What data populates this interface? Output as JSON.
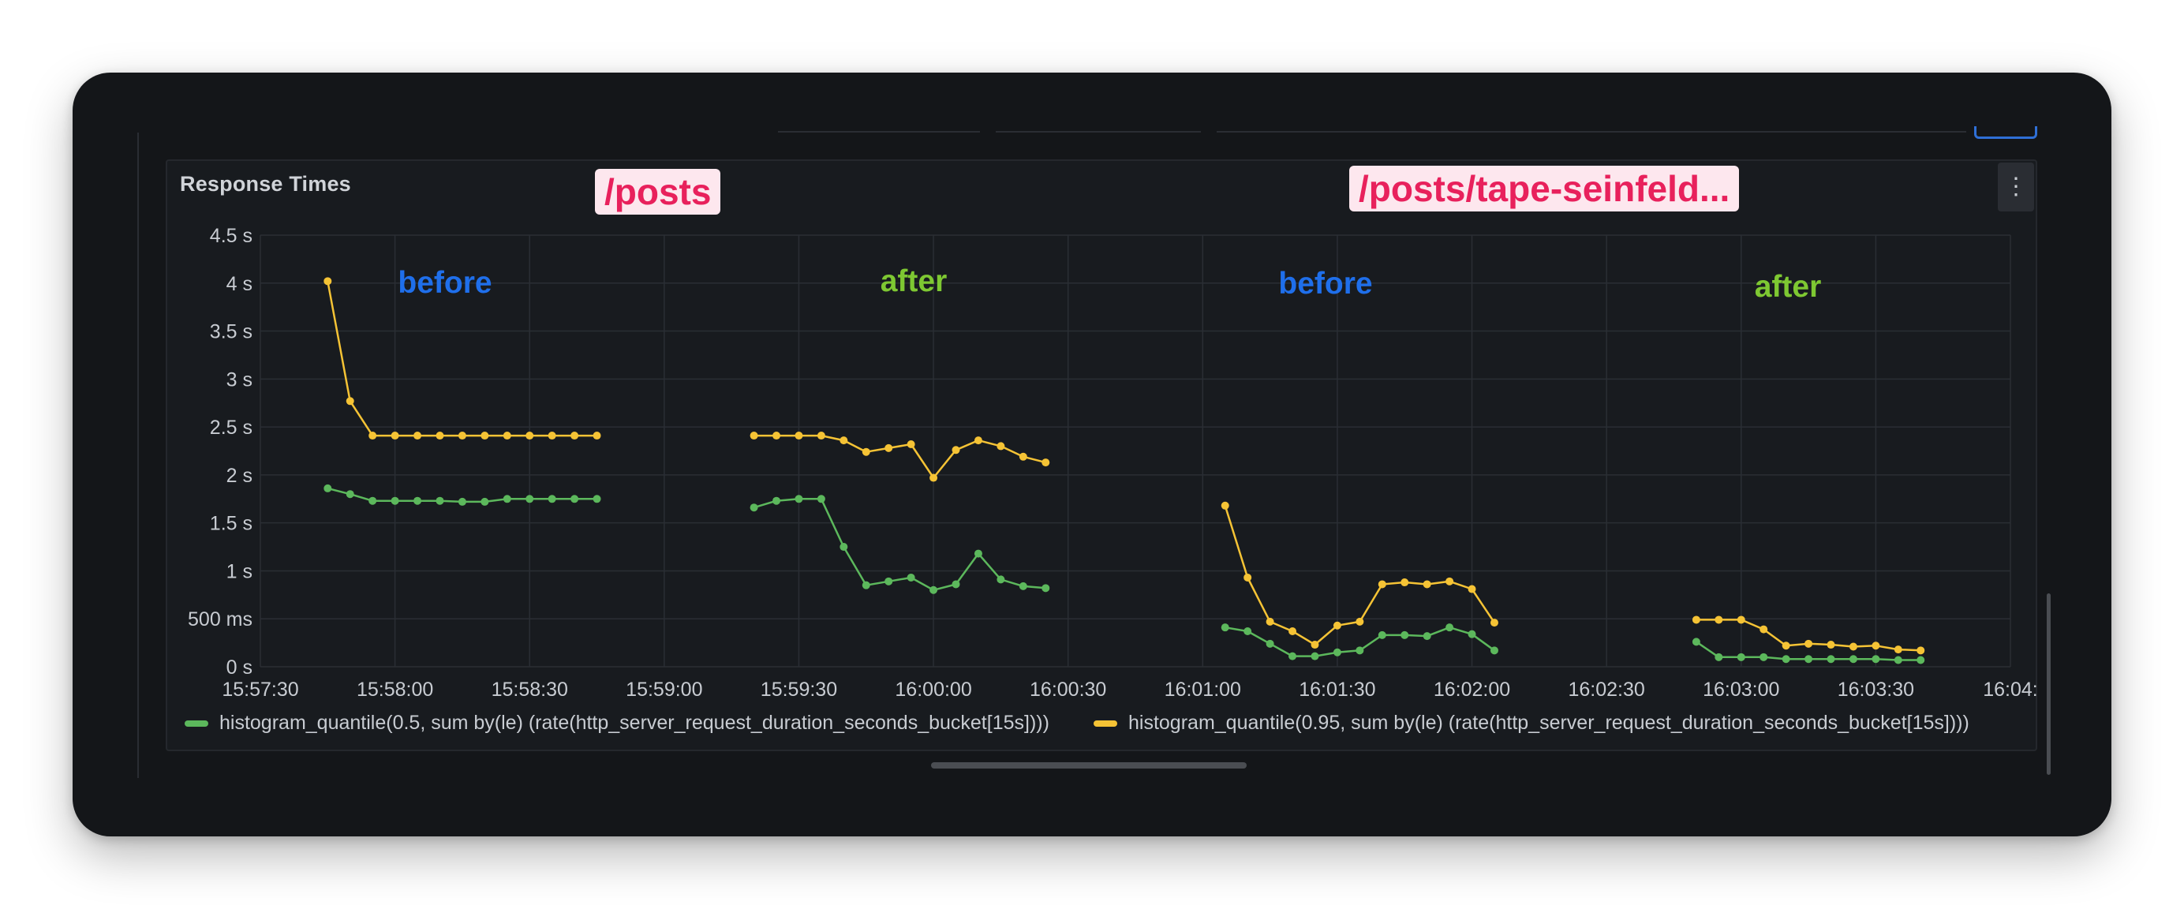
{
  "panel": {
    "title": "Response Times",
    "menu_icon": "more-vertical-icon"
  },
  "annotations": {
    "route_1": "/posts",
    "route_2": "/posts/tape-seinfeld...",
    "phase_labels": [
      "before",
      "after",
      "before",
      "after"
    ],
    "colors": {
      "before": "#1f6feb",
      "after": "#7ec832",
      "route_bg": "#fde7ee",
      "route_fg": "#e8215c"
    }
  },
  "legend": [
    {
      "label": "histogram_quantile(0.5, sum by(le) (rate(http_server_request_duration_seconds_bucket[15s])))",
      "color": "#5cb85c"
    },
    {
      "label": "histogram_quantile(0.95, sum by(le) (rate(http_server_request_duration_seconds_bucket[15s])))",
      "color": "#f5c335"
    }
  ],
  "chart_data": {
    "type": "line",
    "title": "Response Times",
    "y_tick_labels": [
      "0 s",
      "500 ms",
      "1 s",
      "1.5 s",
      "2 s",
      "2.5 s",
      "3 s",
      "3.5 s",
      "4 s",
      "4.5 s"
    ],
    "y_ticks": [
      0,
      0.5,
      1,
      1.5,
      2,
      2.5,
      3,
      3.5,
      4,
      4.5
    ],
    "x_tick_labels": [
      "15:57:30",
      "15:58:00",
      "15:58:30",
      "15:59:00",
      "15:59:30",
      "16:00:00",
      "16:00:30",
      "16:01:00",
      "16:01:30",
      "16:02:00",
      "16:02:30",
      "16:03:00",
      "16:03:30",
      "16:04:"
    ],
    "xlim": [
      "15:57:30",
      "16:04:00"
    ],
    "ylim": [
      0,
      4.5
    ],
    "y_unit": "s",
    "grid": true,
    "legend_position": "bottom",
    "series": [
      {
        "name": "histogram_quantile(0.5, sum by(le) (rate(http_server_request_duration_seconds_bucket[15s])))",
        "color": "#5cb85c",
        "segments": [
          {
            "x": [
              "15:57:45",
              "15:57:50",
              "15:57:55",
              "15:58:00",
              "15:58:05",
              "15:58:10",
              "15:58:15",
              "15:58:20",
              "15:58:25",
              "15:58:30",
              "15:58:35",
              "15:58:40",
              "15:58:45"
            ],
            "y": [
              1.86,
              1.8,
              1.73,
              1.73,
              1.73,
              1.73,
              1.72,
              1.72,
              1.75,
              1.75,
              1.75,
              1.75,
              1.75
            ]
          },
          {
            "x": [
              "15:59:20",
              "15:59:25",
              "15:59:30",
              "15:59:35",
              "15:59:40",
              "15:59:45",
              "15:59:50",
              "15:59:55",
              "16:00:00",
              "16:00:05",
              "16:00:10",
              "16:00:15",
              "16:00:20",
              "16:00:25"
            ],
            "y": [
              1.66,
              1.73,
              1.75,
              1.75,
              1.25,
              0.85,
              0.89,
              0.93,
              0.8,
              0.86,
              1.18,
              0.91,
              0.84,
              0.82
            ]
          },
          {
            "x": [
              "16:01:05",
              "16:01:10",
              "16:01:15",
              "16:01:20",
              "16:01:25",
              "16:01:30",
              "16:01:35",
              "16:01:40",
              "16:01:45",
              "16:01:50",
              "16:01:55",
              "16:02:00",
              "16:02:05"
            ],
            "y": [
              0.41,
              0.37,
              0.24,
              0.11,
              0.11,
              0.15,
              0.17,
              0.33,
              0.33,
              0.32,
              0.41,
              0.34,
              0.17
            ]
          },
          {
            "x": [
              "16:02:50",
              "16:02:55",
              "16:03:00",
              "16:03:05",
              "16:03:10",
              "16:03:15",
              "16:03:20",
              "16:03:25",
              "16:03:30",
              "16:03:35",
              "16:03:40"
            ],
            "y": [
              0.26,
              0.1,
              0.1,
              0.1,
              0.08,
              0.08,
              0.08,
              0.08,
              0.08,
              0.07,
              0.07
            ]
          }
        ]
      },
      {
        "name": "histogram_quantile(0.95, sum by(le) (rate(http_server_request_duration_seconds_bucket[15s])))",
        "color": "#f5c335",
        "segments": [
          {
            "x": [
              "15:57:45",
              "15:57:50",
              "15:57:55",
              "15:58:00",
              "15:58:05",
              "15:58:10",
              "15:58:15",
              "15:58:20",
              "15:58:25",
              "15:58:30",
              "15:58:35",
              "15:58:40",
              "15:58:45"
            ],
            "y": [
              4.02,
              2.77,
              2.41,
              2.41,
              2.41,
              2.41,
              2.41,
              2.41,
              2.41,
              2.41,
              2.41,
              2.41,
              2.41
            ]
          },
          {
            "x": [
              "15:59:20",
              "15:59:25",
              "15:59:30",
              "15:59:35",
              "15:59:40",
              "15:59:45",
              "15:59:50",
              "15:59:55",
              "16:00:00",
              "16:00:05",
              "16:00:10",
              "16:00:15",
              "16:00:20",
              "16:00:25"
            ],
            "y": [
              2.41,
              2.41,
              2.41,
              2.41,
              2.36,
              2.24,
              2.28,
              2.32,
              1.97,
              2.26,
              2.36,
              2.3,
              2.19,
              2.13
            ]
          },
          {
            "x": [
              "16:01:05",
              "16:01:10",
              "16:01:15",
              "16:01:20",
              "16:01:25",
              "16:01:30",
              "16:01:35",
              "16:01:40",
              "16:01:45",
              "16:01:50",
              "16:01:55",
              "16:02:00",
              "16:02:05"
            ],
            "y": [
              1.68,
              0.93,
              0.47,
              0.37,
              0.23,
              0.43,
              0.47,
              0.86,
              0.88,
              0.86,
              0.89,
              0.81,
              0.46
            ]
          },
          {
            "x": [
              "16:02:50",
              "16:02:55",
              "16:03:00",
              "16:03:05",
              "16:03:10",
              "16:03:15",
              "16:03:20",
              "16:03:25",
              "16:03:30",
              "16:03:35",
              "16:03:40"
            ],
            "y": [
              0.49,
              0.49,
              0.49,
              0.39,
              0.22,
              0.24,
              0.23,
              0.21,
              0.22,
              0.18,
              0.17
            ]
          }
        ]
      }
    ]
  }
}
